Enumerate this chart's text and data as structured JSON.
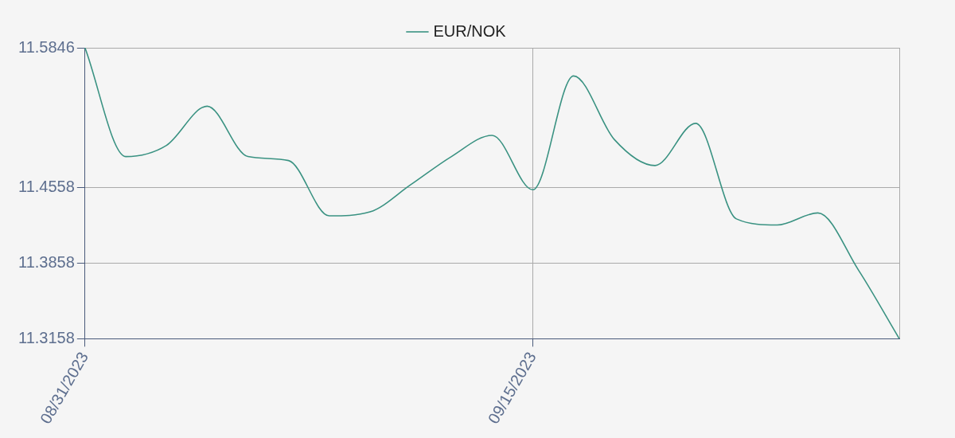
{
  "chart_data": {
    "type": "line",
    "categories": [
      "08/31/2023",
      null,
      null,
      null,
      null,
      null,
      null,
      null,
      null,
      null,
      null,
      "09/15/2023",
      null,
      null,
      null,
      null,
      null,
      null,
      null,
      null,
      null
    ],
    "series": [
      {
        "name": "EUR/NOK",
        "color": "#3a9282",
        "values": [
          11.5846,
          11.4841,
          11.4944,
          11.5306,
          11.4841,
          11.4804,
          11.4293,
          11.433,
          11.4581,
          11.4841,
          11.5037,
          11.4534,
          11.5586,
          11.4999,
          11.4758,
          11.5148,
          11.4265,
          11.4209,
          11.432,
          11.379,
          11.3158
        ]
      }
    ],
    "ylim": [
      11.3158,
      11.5846
    ],
    "yticks": [
      11.3158,
      11.3858,
      11.4558,
      11.5846
    ],
    "grid": true,
    "legend": "top",
    "marker": "none",
    "line_style": "solid"
  }
}
